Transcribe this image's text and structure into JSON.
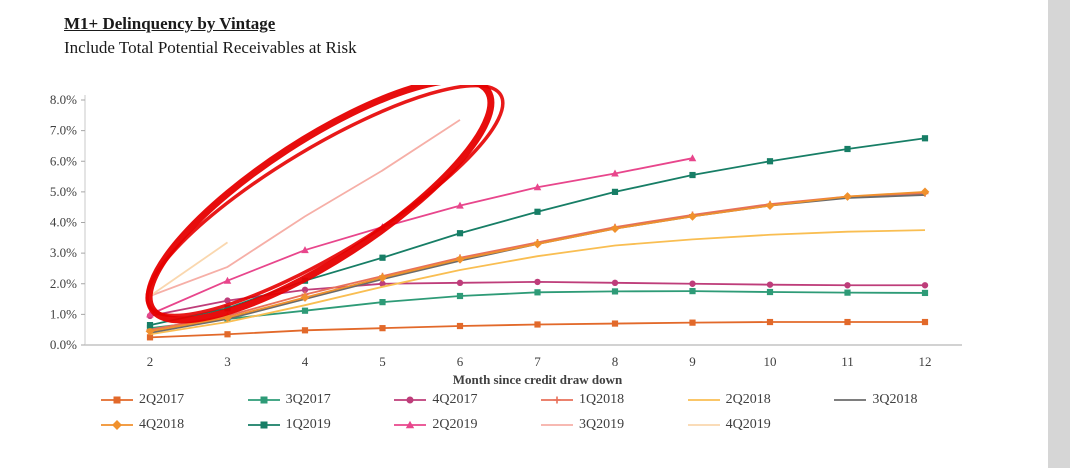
{
  "header": {
    "title": "M1+ Delinquency by Vintage",
    "subtitle": "Include Total Potential Receivables at Risk"
  },
  "chart_data": {
    "type": "line",
    "title": "M1+ Delinquency by Vintage",
    "subtitle": "Include Total Potential Receivables at Risk",
    "xlabel": "Month since credit draw down",
    "ylabel": "",
    "grid": false,
    "legend_position": "bottom",
    "x_ticks": [
      2,
      3,
      4,
      5,
      6,
      7,
      8,
      9,
      10,
      11,
      12
    ],
    "y_ticks": [
      "0.0%",
      "1.0%",
      "2.0%",
      "3.0%",
      "4.0%",
      "5.0%",
      "6.0%",
      "7.0%",
      "8.0%"
    ],
    "ylim": [
      0,
      8
    ],
    "series": [
      {
        "name": "2Q2017",
        "color": "#E2692A",
        "marker": "square",
        "x": [
          2,
          3,
          4,
          5,
          6,
          7,
          8,
          9,
          10,
          11,
          12
        ],
        "values": [
          0.25,
          0.35,
          0.48,
          0.55,
          0.62,
          0.67,
          0.7,
          0.73,
          0.75,
          0.75,
          0.75
        ]
      },
      {
        "name": "3Q2017",
        "color": "#2E9B77",
        "marker": "square",
        "x": [
          2,
          3,
          4,
          5,
          6,
          7,
          8,
          9,
          10,
          11,
          12
        ],
        "values": [
          0.55,
          0.85,
          1.12,
          1.4,
          1.6,
          1.72,
          1.75,
          1.76,
          1.73,
          1.71,
          1.7
        ]
      },
      {
        "name": "4Q2017",
        "color": "#BE3D7A",
        "marker": "circle",
        "x": [
          2,
          3,
          4,
          5,
          6,
          7,
          8,
          9,
          10,
          11,
          12
        ],
        "values": [
          0.95,
          1.45,
          1.8,
          2.0,
          2.03,
          2.06,
          2.03,
          2.0,
          1.97,
          1.95,
          1.95
        ]
      },
      {
        "name": "1Q2018",
        "color": "#E8705A",
        "marker": "plus",
        "x": [
          2,
          3,
          4,
          5,
          6,
          7,
          8,
          9,
          10,
          11,
          12
        ],
        "values": [
          0.5,
          0.95,
          1.65,
          2.25,
          2.85,
          3.35,
          3.85,
          4.25,
          4.6,
          4.85,
          4.95
        ]
      },
      {
        "name": "2Q2018",
        "color": "#F9BE52",
        "marker": "none",
        "x": [
          2,
          3,
          4,
          5,
          6,
          7,
          8,
          9,
          10,
          11,
          12
        ],
        "values": [
          0.35,
          0.75,
          1.3,
          1.9,
          2.45,
          2.9,
          3.25,
          3.45,
          3.6,
          3.7,
          3.75
        ]
      },
      {
        "name": "3Q2018",
        "color": "#6B6B6B",
        "marker": "none",
        "x": [
          2,
          3,
          4,
          5,
          6,
          7,
          8,
          9,
          10,
          11,
          12
        ],
        "values": [
          0.4,
          0.85,
          1.5,
          2.15,
          2.75,
          3.3,
          3.8,
          4.2,
          4.55,
          4.8,
          4.9
        ]
      },
      {
        "name": "4Q2018",
        "color": "#F0912D",
        "marker": "diamond",
        "x": [
          2,
          3,
          4,
          5,
          6,
          7,
          8,
          9,
          10,
          11,
          12
        ],
        "values": [
          0.45,
          0.9,
          1.55,
          2.2,
          2.8,
          3.3,
          3.8,
          4.2,
          4.55,
          4.85,
          5.0
        ]
      },
      {
        "name": "1Q2019",
        "color": "#177E66",
        "marker": "square",
        "x": [
          2,
          3,
          4,
          5,
          6,
          7,
          8,
          9,
          10,
          11,
          12
        ],
        "values": [
          0.65,
          1.2,
          2.1,
          2.85,
          3.65,
          4.35,
          5.0,
          5.55,
          6.0,
          6.4,
          6.75
        ]
      },
      {
        "name": "2Q2019",
        "color": "#E8468C",
        "marker": "triangle",
        "x": [
          2,
          3,
          4,
          5,
          6,
          7,
          8,
          9
        ],
        "values": [
          1.0,
          2.1,
          3.1,
          3.85,
          4.55,
          5.15,
          5.6,
          6.1
        ]
      },
      {
        "name": "3Q2019",
        "color": "#F6AFA7",
        "marker": "none",
        "x": [
          2,
          3,
          4,
          5,
          6
        ],
        "values": [
          1.6,
          2.55,
          4.2,
          5.7,
          7.35
        ]
      },
      {
        "name": "4Q2019",
        "color": "#FAD7AE",
        "marker": "none",
        "x": [
          2,
          3
        ],
        "values": [
          1.6,
          3.35
        ]
      }
    ],
    "annotation": {
      "type": "hand-drawn-circle",
      "note": "red hand-drawn loop circling the steep 3Q2019 and 4Q2019 vintage curves",
      "color": "#E60000",
      "cx": 320,
      "cy": 115,
      "rx": 200,
      "ry": 60,
      "rotate": -33,
      "stroke_width": 7
    }
  }
}
